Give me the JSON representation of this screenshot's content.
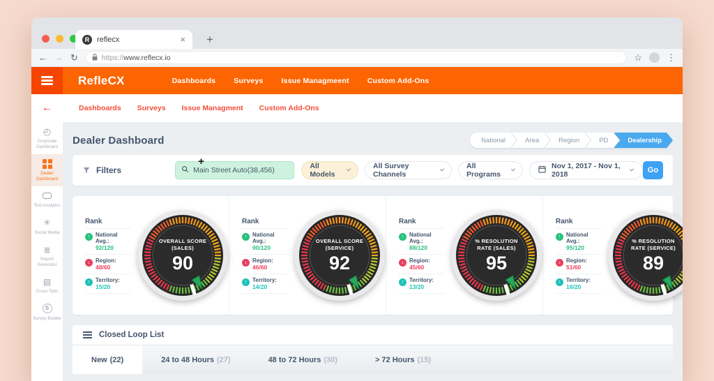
{
  "browser": {
    "tab_title": "reflecx",
    "favicon_letter": "R",
    "close_tab": "×",
    "new_tab": "+",
    "back": "←",
    "forward": "→",
    "reload": "↻",
    "url_scheme": "https://",
    "url_host": "www.reflecx.io",
    "bookmark_star": "☆",
    "menu_dots": "⋮"
  },
  "header": {
    "logo": "RefleCX",
    "nav": [
      "Dashboards",
      "Surveys",
      "Issue Managmeent",
      "Custom Add-Ons"
    ]
  },
  "subnav": [
    "Dashboards",
    "Surveys",
    "Issue Managment",
    "Custom Add-Ons"
  ],
  "sidebar": {
    "back_arrow": "←",
    "items": [
      {
        "label": "Corporate Dashboard",
        "icon": "gauge-icon",
        "active": false
      },
      {
        "label": "Dealer Dashboard",
        "icon": "grid-icon",
        "active": true
      },
      {
        "label": "Text Analytics",
        "icon": "chat-icon",
        "active": false
      },
      {
        "label": "Social Media",
        "icon": "share-icon",
        "active": false
      },
      {
        "label": "Report Generator",
        "icon": "list-icon",
        "active": false
      },
      {
        "label": "Cross Tabs",
        "icon": "book-icon",
        "active": false
      },
      {
        "label": "Survey Builder",
        "icon": "s-circle-icon",
        "active": false
      }
    ]
  },
  "page": {
    "title": "Dealer Dashboard",
    "breadcrumb": [
      {
        "label": "National",
        "active": false
      },
      {
        "label": "Area",
        "active": false
      },
      {
        "label": "Region",
        "active": false
      },
      {
        "label": "PD",
        "active": false
      },
      {
        "label": "Dealership",
        "active": true
      }
    ]
  },
  "filters": {
    "label": "Filters",
    "search_value": "Main Street Auto(38,456)",
    "cursor": "+",
    "dropdowns": [
      "All Models",
      "All Survey Channels",
      "All Programs"
    ],
    "date_range": "Nov 1, 2017 - Nov 1, 2018",
    "go_label": "Go"
  },
  "gauges": [
    {
      "label_line1": "OVERALL SCORE",
      "label_line2": "(SALES)",
      "value": "90",
      "rank": [
        {
          "label": "National Avg.:",
          "value": "92/120",
          "dir": "up",
          "color": "green"
        },
        {
          "label": "Region:",
          "value": "48/60",
          "dir": "down",
          "color": "red"
        },
        {
          "label": "Territory:",
          "value": "15/20",
          "dir": "up",
          "color": "teal"
        }
      ]
    },
    {
      "label_line1": "OVERALL SCORE",
      "label_line2": "(SERVICE)",
      "value": "92",
      "rank": [
        {
          "label": "National Avg.:",
          "value": "90/120",
          "dir": "up",
          "color": "green"
        },
        {
          "label": "Region:",
          "value": "46/60",
          "dir": "down",
          "color": "red"
        },
        {
          "label": "Territory:",
          "value": "14/20",
          "dir": "up",
          "color": "teal"
        }
      ]
    },
    {
      "label_line1": "% RESOLUTION",
      "label_line2": "RATE (SALES)",
      "value": "95",
      "rank": [
        {
          "label": "National Avg.:",
          "value": "88/120",
          "dir": "up",
          "color": "green"
        },
        {
          "label": "Region:",
          "value": "45/60",
          "dir": "down",
          "color": "red"
        },
        {
          "label": "Territory:",
          "value": "13/20",
          "dir": "up",
          "color": "teal"
        }
      ]
    },
    {
      "label_line1": "% RESOLUTION",
      "label_line2": "RATE (SERVICE)",
      "value": "89",
      "rank": [
        {
          "label": "National Avg.:",
          "value": "95/120",
          "dir": "up",
          "color": "green"
        },
        {
          "label": "Region:",
          "value": "51/60",
          "dir": "down",
          "color": "red"
        },
        {
          "label": "Territory:",
          "value": "16/20",
          "dir": "up",
          "color": "teal"
        }
      ]
    }
  ],
  "rank_heading": "Rank",
  "closed_loop": {
    "title": "Closed Loop List",
    "tabs": [
      {
        "label": "New",
        "count": "(22)",
        "active": true
      },
      {
        "label": "24 to 48 Hours",
        "count": "(27)",
        "active": false
      },
      {
        "label": "48 to 72 Hours",
        "count": "(30)",
        "active": false
      },
      {
        "label": "> 72 Hours",
        "count": "(15)",
        "active": false
      }
    ]
  },
  "colors": {
    "header_orange": "#fd6502",
    "burger_orange": "#f54500",
    "link_red": "#f4503a",
    "navy": "#44566c",
    "active_blue": "#4aa9ee",
    "go_blue": "#3da1f4",
    "search_green_bg": "#cdf2dd",
    "models_cream_bg": "#fcf0d8",
    "rank_green": "#29c17e",
    "rank_red": "#ef3e5e",
    "rank_teal": "#1ec2b8",
    "tick_red": "#e5384e",
    "tick_orange": "#f5941e",
    "tick_green": "#6cbe45"
  }
}
